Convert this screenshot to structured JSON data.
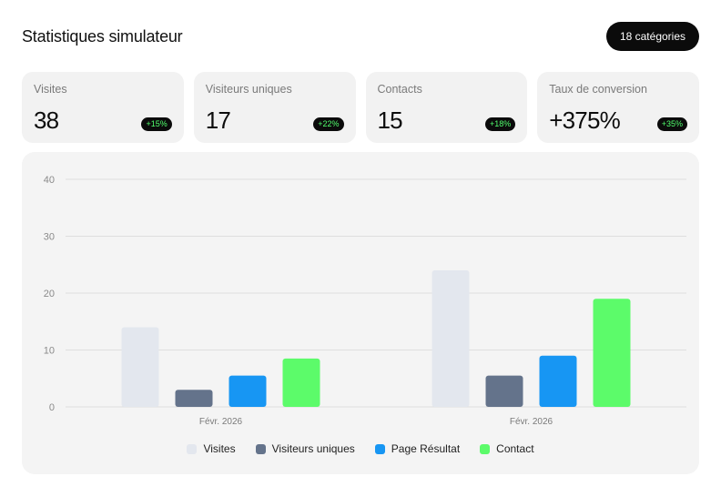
{
  "header": {
    "title": "Statistiques simulateur",
    "categories_button": "18 catégories"
  },
  "cards": [
    {
      "label": "Visites",
      "value": "38",
      "badge": "+15%"
    },
    {
      "label": "Visiteurs uniques",
      "value": "17",
      "badge": "+22%"
    },
    {
      "label": "Contacts",
      "value": "15",
      "badge": "+18%"
    },
    {
      "label": "Taux de conversion",
      "value": "+375%",
      "badge": "+35%"
    }
  ],
  "chart_data": {
    "type": "bar",
    "categories": [
      "Févr. 2026",
      "Févr. 2026"
    ],
    "series": [
      {
        "name": "Visites",
        "color": "#e3e7ee",
        "values": [
          14,
          24
        ]
      },
      {
        "name": "Visiteurs uniques",
        "color": "#64738b",
        "values": [
          3,
          5.5
        ]
      },
      {
        "name": "Page Résultat",
        "color": "#1796f3",
        "values": [
          5.5,
          9
        ]
      },
      {
        "name": "Contact",
        "color": "#5cfb6a",
        "values": [
          8.5,
          19
        ]
      }
    ],
    "yticks": [
      0,
      10,
      20,
      30,
      40
    ],
    "ylim": [
      0,
      40
    ],
    "grid": true,
    "legend_position": "bottom"
  }
}
